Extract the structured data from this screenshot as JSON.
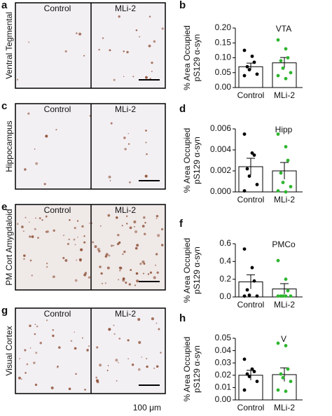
{
  "images": [
    {
      "panel": "a",
      "region": "Ventral Tegmental",
      "left": "Control",
      "right": "MLi-2"
    },
    {
      "panel": "c",
      "region": "Hippocampus",
      "left": "Control",
      "right": "MLi-2"
    },
    {
      "panel": "e",
      "region": "PM Cort Amygdaloid",
      "left": "Control",
      "right": "MLi-2"
    },
    {
      "panel": "g",
      "region": "Visual Cortex",
      "left": "Control",
      "right": "MLi-2"
    }
  ],
  "scale_label": "100 μm",
  "chart_data": [
    {
      "type": "bar",
      "panel": "b",
      "title": "VTA",
      "ylabel": [
        "% Area Occupied",
        "pS129 α-syn"
      ],
      "categories": [
        "Control",
        "MLi-2"
      ],
      "values": [
        0.07,
        0.083
      ],
      "errors": [
        0.012,
        0.018
      ],
      "points": [
        [
          0.125,
          0.105,
          0.085,
          0.07,
          0.06,
          0.045,
          0.04
        ],
        [
          0.16,
          0.13,
          0.1,
          0.09,
          0.065,
          0.05,
          0.04,
          0.03
        ]
      ],
      "point_colors": [
        "#000000",
        "#2db52d"
      ],
      "bar_color": "#ffffff",
      "ylim": [
        0,
        0.2
      ],
      "yticks": [
        {
          "value": 0,
          "label": "0.00"
        },
        0.05,
        {
          "value": 0.1,
          "label": "0.10"
        },
        0.15,
        {
          "value": 0.2,
          "label": "0.20"
        }
      ]
    },
    {
      "type": "bar",
      "panel": "d",
      "title": "Hipp",
      "ylabel": [
        "% Area Occupied",
        "pS129 α-syn"
      ],
      "categories": [
        "Control",
        "MLi-2"
      ],
      "values": [
        0.0024,
        0.002
      ],
      "errors": [
        0.0008,
        0.0008
      ],
      "points": [
        [
          0.0055,
          0.0037,
          0.0035,
          0.0022,
          0.0015,
          0.0007,
          0.0001
        ],
        [
          0.0055,
          0.0043,
          0.003,
          0.0018,
          0.0009,
          0.0005,
          0.0001,
          0
        ]
      ],
      "point_colors": [
        "#000000",
        "#2db52d"
      ],
      "bar_color": "#ffffff",
      "ylim": [
        0,
        0.006
      ],
      "yticks": [
        {
          "value": 0,
          "label": "0.000"
        },
        {
          "value": 0.002,
          "label": "0.002"
        },
        {
          "value": 0.004,
          "label": "0.004"
        },
        {
          "value": 0.006,
          "label": "0.006"
        }
      ]
    },
    {
      "type": "bar",
      "panel": "f",
      "title": "PMCo",
      "ylabel": [
        "% Area Occupied",
        "pS129 α-syn"
      ],
      "categories": [
        "Control",
        "MLi-2"
      ],
      "values": [
        0.17,
        0.09
      ],
      "errors": [
        0.08,
        0.06
      ],
      "points": [
        [
          0.54,
          0.33,
          0.18,
          0.08,
          0.02,
          0.01,
          0.01
        ],
        [
          0.41,
          0.2,
          0.07,
          0.01,
          0.01,
          0.01,
          0.01,
          0.01
        ]
      ],
      "point_colors": [
        "#000000",
        "#2db52d"
      ],
      "bar_color": "#ffffff",
      "ylim": [
        0,
        0.6
      ],
      "yticks": [
        {
          "value": 0,
          "label": "0.0"
        },
        0.2,
        0.4,
        0.6
      ]
    },
    {
      "type": "bar",
      "panel": "h",
      "title": "V",
      "ylabel": [
        "% Area Occupied",
        "pS129 α-syn"
      ],
      "categories": [
        "Control",
        "MLi-2"
      ],
      "values": [
        0.02,
        0.0205
      ],
      "errors": [
        0.004,
        0.0055
      ],
      "points": [
        [
          0.033,
          0.025,
          0.023,
          0.021,
          0.019,
          0.015,
          0.008
        ],
        [
          0.046,
          0.044,
          0.025,
          0.021,
          0.018,
          0.015,
          0.008,
          0.007
        ]
      ],
      "point_colors": [
        "#000000",
        "#2db52d"
      ],
      "bar_color": "#ffffff",
      "ylim": [
        0,
        0.05
      ],
      "yticks": [
        {
          "value": 0,
          "label": "0.00"
        },
        0.01,
        0.02,
        0.03,
        0.04,
        0.05
      ]
    }
  ]
}
